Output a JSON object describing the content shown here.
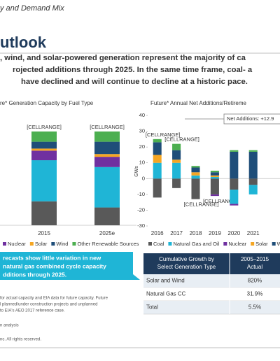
{
  "header": {
    "kicker": "y and Demand Mix",
    "title": "utlook"
  },
  "body": {
    "lines": [
      ", wind, and solar-powered generation represent the majority of ca",
      "rojected additions through 2025. In the same time frame, coal- a",
      "have declined and will continue to decline at a historic pace."
    ]
  },
  "chart_data": [
    {
      "type": "bar",
      "stacked": true,
      "title": "re* Generation Capacity by Fuel Type",
      "categories": [
        "2015",
        "2025e"
      ],
      "bar_labels": [
        "[CELLRANGE]",
        "[CELLRANGE]"
      ],
      "ylim": [
        0,
        140
      ],
      "series": [
        {
          "name": null,
          "color": "#595959",
          "values": [
            35,
            26
          ]
        },
        {
          "name": null,
          "color": "#1fb5d6",
          "values": [
            60,
            59
          ]
        },
        {
          "name": "Nuclear",
          "color": "#7030a0",
          "values": [
            14,
            15
          ]
        },
        {
          "name": "Solar",
          "color": "#f5a623",
          "values": [
            3,
            4
          ]
        },
        {
          "name": "Wind",
          "color": "#1f4e79",
          "values": [
            10,
            18
          ]
        },
        {
          "name": "Other Renewable Sources",
          "color": "#4caf50",
          "values": [
            15,
            15
          ]
        }
      ]
    },
    {
      "type": "bar",
      "stacked": true,
      "title": "Future* Annual Net Additions/Retireme",
      "y_label": "GWs",
      "annotation": "Net Additions: +12.9",
      "categories": [
        "2016",
        "2017",
        "2018",
        "2019",
        "2020",
        "2021"
      ],
      "bar_labels": [
        "[CELLRANGE]",
        "[CELLRANGE]",
        "[CELLRANGE]",
        "[CELLRANGE]",
        null,
        null
      ],
      "ylim": [
        -30,
        40
      ],
      "yticks": [
        -30,
        -20,
        -10,
        0,
        10,
        20,
        30,
        40
      ],
      "series": [
        {
          "name": "Coal",
          "color": "#595959",
          "values": [
            -12,
            -6,
            -13,
            -10,
            -7,
            -4
          ]
        },
        {
          "name": "Natural Gas and Oil",
          "color": "#1fb5d6",
          "values": [
            10,
            10,
            2,
            1,
            -9,
            -6
          ]
        },
        {
          "name": "Nuclear",
          "color": "#7030a0",
          "values": [
            0,
            0,
            0,
            -1,
            -1,
            0
          ]
        },
        {
          "name": "Solar",
          "color": "#f5a623",
          "values": [
            5,
            2,
            2,
            1,
            0,
            0
          ]
        },
        {
          "name": "Wind",
          "color": "#1f4e79",
          "values": [
            8,
            6,
            3,
            2,
            17,
            17
          ]
        },
        {
          "name": null,
          "color": "#4caf50",
          "values": [
            2,
            4,
            1,
            1,
            1,
            1
          ]
        }
      ]
    }
  ],
  "callout": {
    "lines": [
      "recasts show little variation in new",
      "natural gas combined cycle capacity",
      "dditions through 2025."
    ]
  },
  "table": {
    "header": [
      [
        "Cumulative Growth by",
        "Select Generation Type"
      ],
      [
        "2005–2015",
        "Actual"
      ]
    ],
    "rows": [
      [
        "Solar and Wind",
        "820%"
      ],
      [
        "Natural Gas CC",
        "31.9%"
      ],
      [
        "Total",
        "5.5%"
      ]
    ]
  },
  "footnotes": [
    "for actual capacity and EIA data for future capacity. Future",
    "l planned/under construction projects and unplanned",
    "to EIA's AEO 2017 reference case.",
    "n analysis",
    "nc. All rights reserved."
  ]
}
